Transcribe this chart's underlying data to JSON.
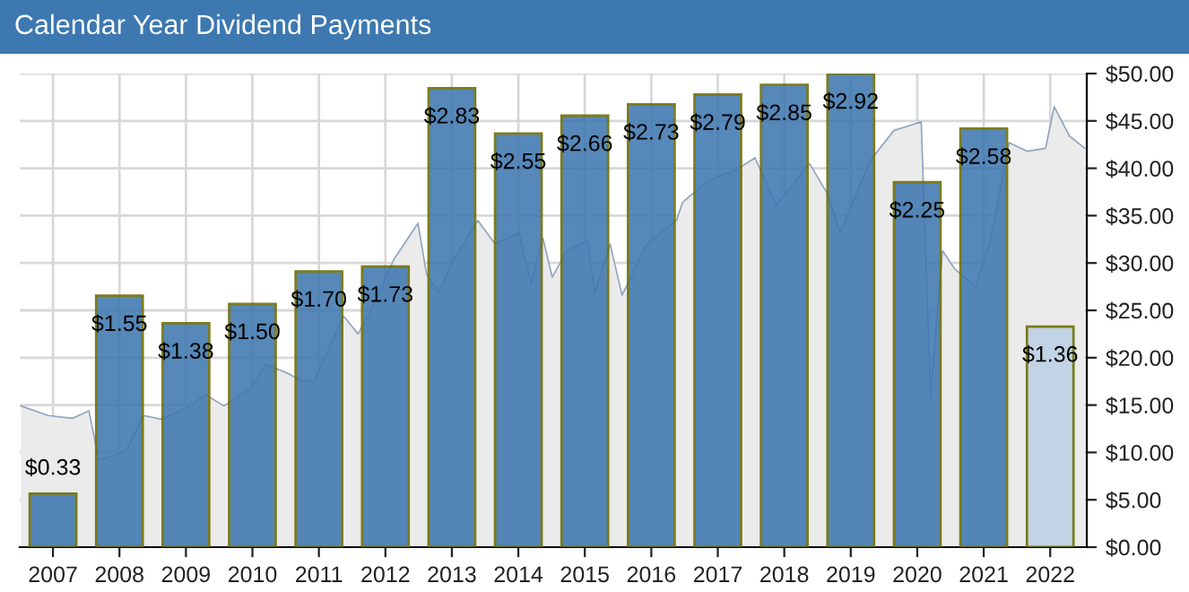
{
  "chart_data": {
    "type": "bar",
    "title": "Calendar Year Dividend Payments",
    "x": [
      2007,
      2008,
      2009,
      2010,
      2011,
      2012,
      2013,
      2014,
      2015,
      2016,
      2017,
      2018,
      2019,
      2020,
      2021,
      2022
    ],
    "xlim": [
      2006.5,
      2022.55
    ],
    "xticks": [
      2007,
      2008,
      2009,
      2010,
      2011,
      2012,
      2013,
      2014,
      2015,
      2016,
      2017,
      2018,
      2019,
      2020,
      2021,
      2022
    ],
    "series": [
      {
        "values": [
          0.33,
          1.55,
          1.38,
          1.5,
          1.7,
          1.73,
          2.83,
          2.55,
          2.66,
          2.73,
          2.79,
          2.85,
          2.92,
          2.25,
          2.58,
          1.36
        ],
        "value_labels": [
          "$0.33",
          "$1.55",
          "$1.38",
          "$1.50",
          "$1.70",
          "$1.73",
          "$2.83",
          "$2.55",
          "$2.66",
          "$2.73",
          "$2.79",
          "$2.85",
          "$2.92",
          "$2.25",
          "$2.58",
          "$1.36"
        ],
        "colors": [
          "#3f78b0",
          "#3f78b0",
          "#3f78b0",
          "#3f78b0",
          "#3f78b0",
          "#3f78b0",
          "#3f78b0",
          "#3f78b0",
          "#3f78b0",
          "#3f78b0",
          "#3f78b0",
          "#3f78b0",
          "#3f78b0",
          "#3f78b0",
          "#3f78b0",
          "#bcd0e4"
        ]
      },
      {
        "type": "area",
        "axis": "y2",
        "color": "#8fa5c0",
        "x": [
          2006.52,
          2006.93,
          2007.29,
          2007.54,
          2007.69,
          2008.09,
          2008.36,
          2008.63,
          2008.99,
          2009.3,
          2009.57,
          2009.98,
          2010.2,
          2010.52,
          2010.7,
          2010.92,
          2011.37,
          2011.59,
          2011.82,
          2012.13,
          2012.49,
          2012.62,
          2012.8,
          2013.03,
          2013.39,
          2013.65,
          2014.01,
          2014.19,
          2014.37,
          2014.51,
          2014.73,
          2015.04,
          2015.15,
          2015.38,
          2015.56,
          2015.93,
          2016.38,
          2016.47,
          2016.84,
          2017.29,
          2017.56,
          2017.88,
          2018.38,
          2018.65,
          2018.84,
          2019.29,
          2019.65,
          2020.06,
          2020.2,
          2020.38,
          2020.56,
          2020.88,
          2021.11,
          2021.38,
          2021.65,
          2021.93,
          2022.06,
          2022.29,
          2022.52
        ],
        "values": [
          14.9,
          13.9,
          13.6,
          14.4,
          9.2,
          10.1,
          13.9,
          13.5,
          14.6,
          16.1,
          14.9,
          16.8,
          19.3,
          18.4,
          17.7,
          17.4,
          24.4,
          22.5,
          25.6,
          30.4,
          34.2,
          28.8,
          26.9,
          30.4,
          34.5,
          32.0,
          33.2,
          27.8,
          32.6,
          28.5,
          31.3,
          32.3,
          26.9,
          32.0,
          26.6,
          32.0,
          34.5,
          36.4,
          38.6,
          39.9,
          41.1,
          36.1,
          40.5,
          37.3,
          33.2,
          40.8,
          44.0,
          44.9,
          15.8,
          31.3,
          29.4,
          27.5,
          32.6,
          42.7,
          41.8,
          42.1,
          46.5,
          43.4,
          42.1
        ]
      }
    ],
    "y2lim": [
      0,
      50
    ],
    "y2ticks": [
      {
        "value": 0,
        "label": "$0.00"
      },
      {
        "value": 5,
        "label": "$5.00"
      },
      {
        "value": 10,
        "label": "$10.00"
      },
      {
        "value": 15,
        "label": "$15.00"
      },
      {
        "value": 20,
        "label": "$20.00"
      },
      {
        "value": 25,
        "label": "$25.00"
      },
      {
        "value": 30,
        "label": "$30.00"
      },
      {
        "value": 35,
        "label": "$35.00"
      },
      {
        "value": 40,
        "label": "$40.00"
      },
      {
        "value": 45,
        "label": "$45.00"
      },
      {
        "value": 50,
        "label": "$50.00"
      }
    ],
    "grid": true
  }
}
